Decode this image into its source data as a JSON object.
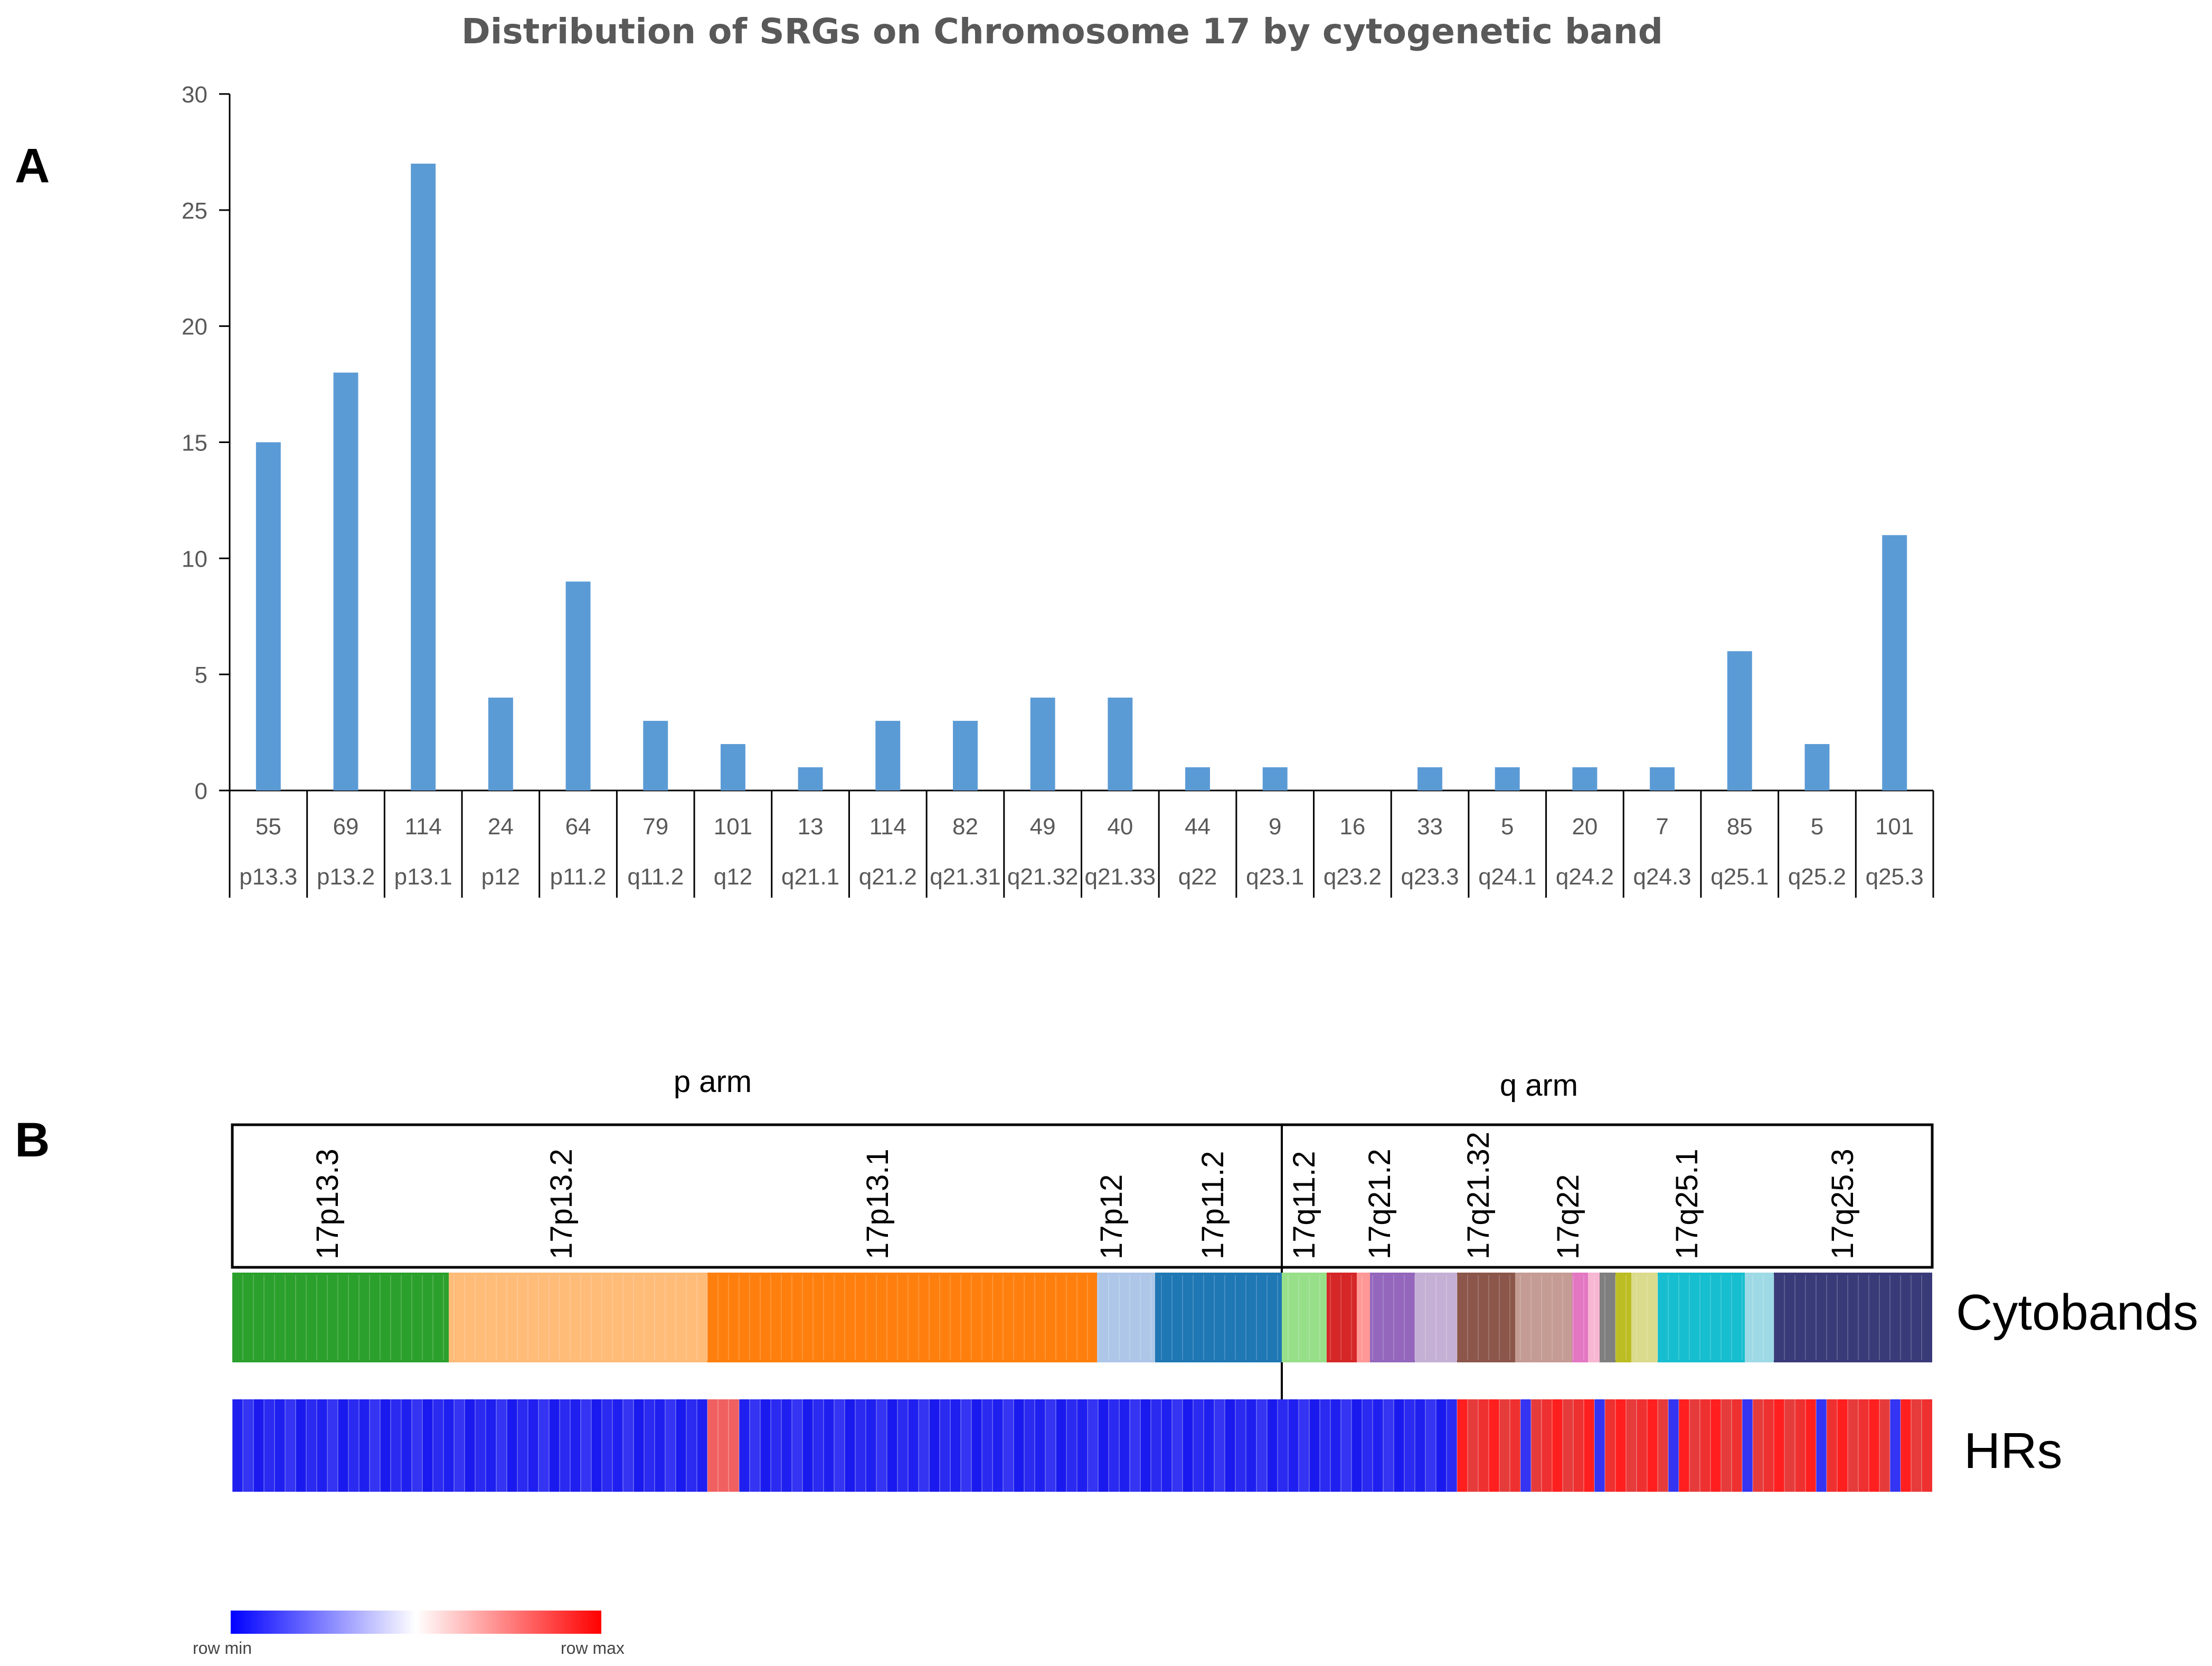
{
  "figure": {
    "panel_a_label": "A",
    "panel_b_label": "B"
  },
  "chart_data": [
    {
      "type": "bar",
      "title": "Distribution of SRGs on Chromosome 17 by cytogenetic band",
      "xlabel": "",
      "ylabel": "",
      "ylim": [
        0,
        30
      ],
      "yticks": [
        0,
        5,
        10,
        15,
        20,
        25,
        30
      ],
      "categories": [
        "p13.3",
        "p13.2",
        "p13.1",
        "p12",
        "p11.2",
        "q11.2",
        "q12",
        "q21.1",
        "q21.2",
        "q21.31",
        "q21.32",
        "q21.33",
        "q22",
        "q23.1",
        "q23.2",
        "q23.3",
        "q24.1",
        "q24.2",
        "q24.3",
        "q25.1",
        "q25.2",
        "q25.3"
      ],
      "gene_counts": [
        "55",
        "69",
        "114",
        "24",
        "64",
        "79",
        "101",
        "13",
        "114",
        "82",
        "49",
        "40",
        "44",
        "9",
        "16",
        "33",
        "5",
        "20",
        "7",
        "85",
        "5",
        "101"
      ],
      "values": [
        15,
        18,
        27,
        4,
        9,
        3,
        2,
        1,
        3,
        3,
        4,
        4,
        1,
        1,
        0,
        1,
        1,
        1,
        1,
        6,
        2,
        11
      ],
      "bar_color": "#5b9bd5"
    },
    {
      "type": "heatmap",
      "p_arm_label": "p arm",
      "q_arm_label": "q arm",
      "band_labels": [
        "17p13.3",
        "17p13.2",
        "17p13.1",
        "17p12",
        "17p11.2",
        "17q11.2",
        "17q21.2",
        "17q21.32",
        "17q22",
        "17q25.1",
        "17q25.3"
      ],
      "cytoband_row_label": "Cytobands",
      "hr_row_label": "HRs",
      "cytoband_colors": [
        "#2ca02c",
        "#ffbb78",
        "#ff7f0e",
        "#aec7e8",
        "#1f77b4",
        "#98df8a",
        "#d62728",
        "#ff9896",
        "#9467bd",
        "#c5b0d5",
        "#8c564b",
        "#c49c94",
        "#e377c2",
        "#f7b6d2",
        "#7f7f7f",
        "#bcbd22",
        "#dbdb8d",
        "#17becf",
        "#9edae5",
        "#393b79"
      ],
      "hr_colors": [
        "#1f1ff0",
        "#3434f2",
        "#1a1aee",
        "#2a2af1",
        "#e63b3b",
        "#ef3030",
        "#ff1f1f"
      ],
      "legend_min_label": "row min",
      "legend_max_label": "row max",
      "legend_colors": [
        "#0000ff",
        "#ffffff",
        "#ff0000"
      ]
    }
  ]
}
